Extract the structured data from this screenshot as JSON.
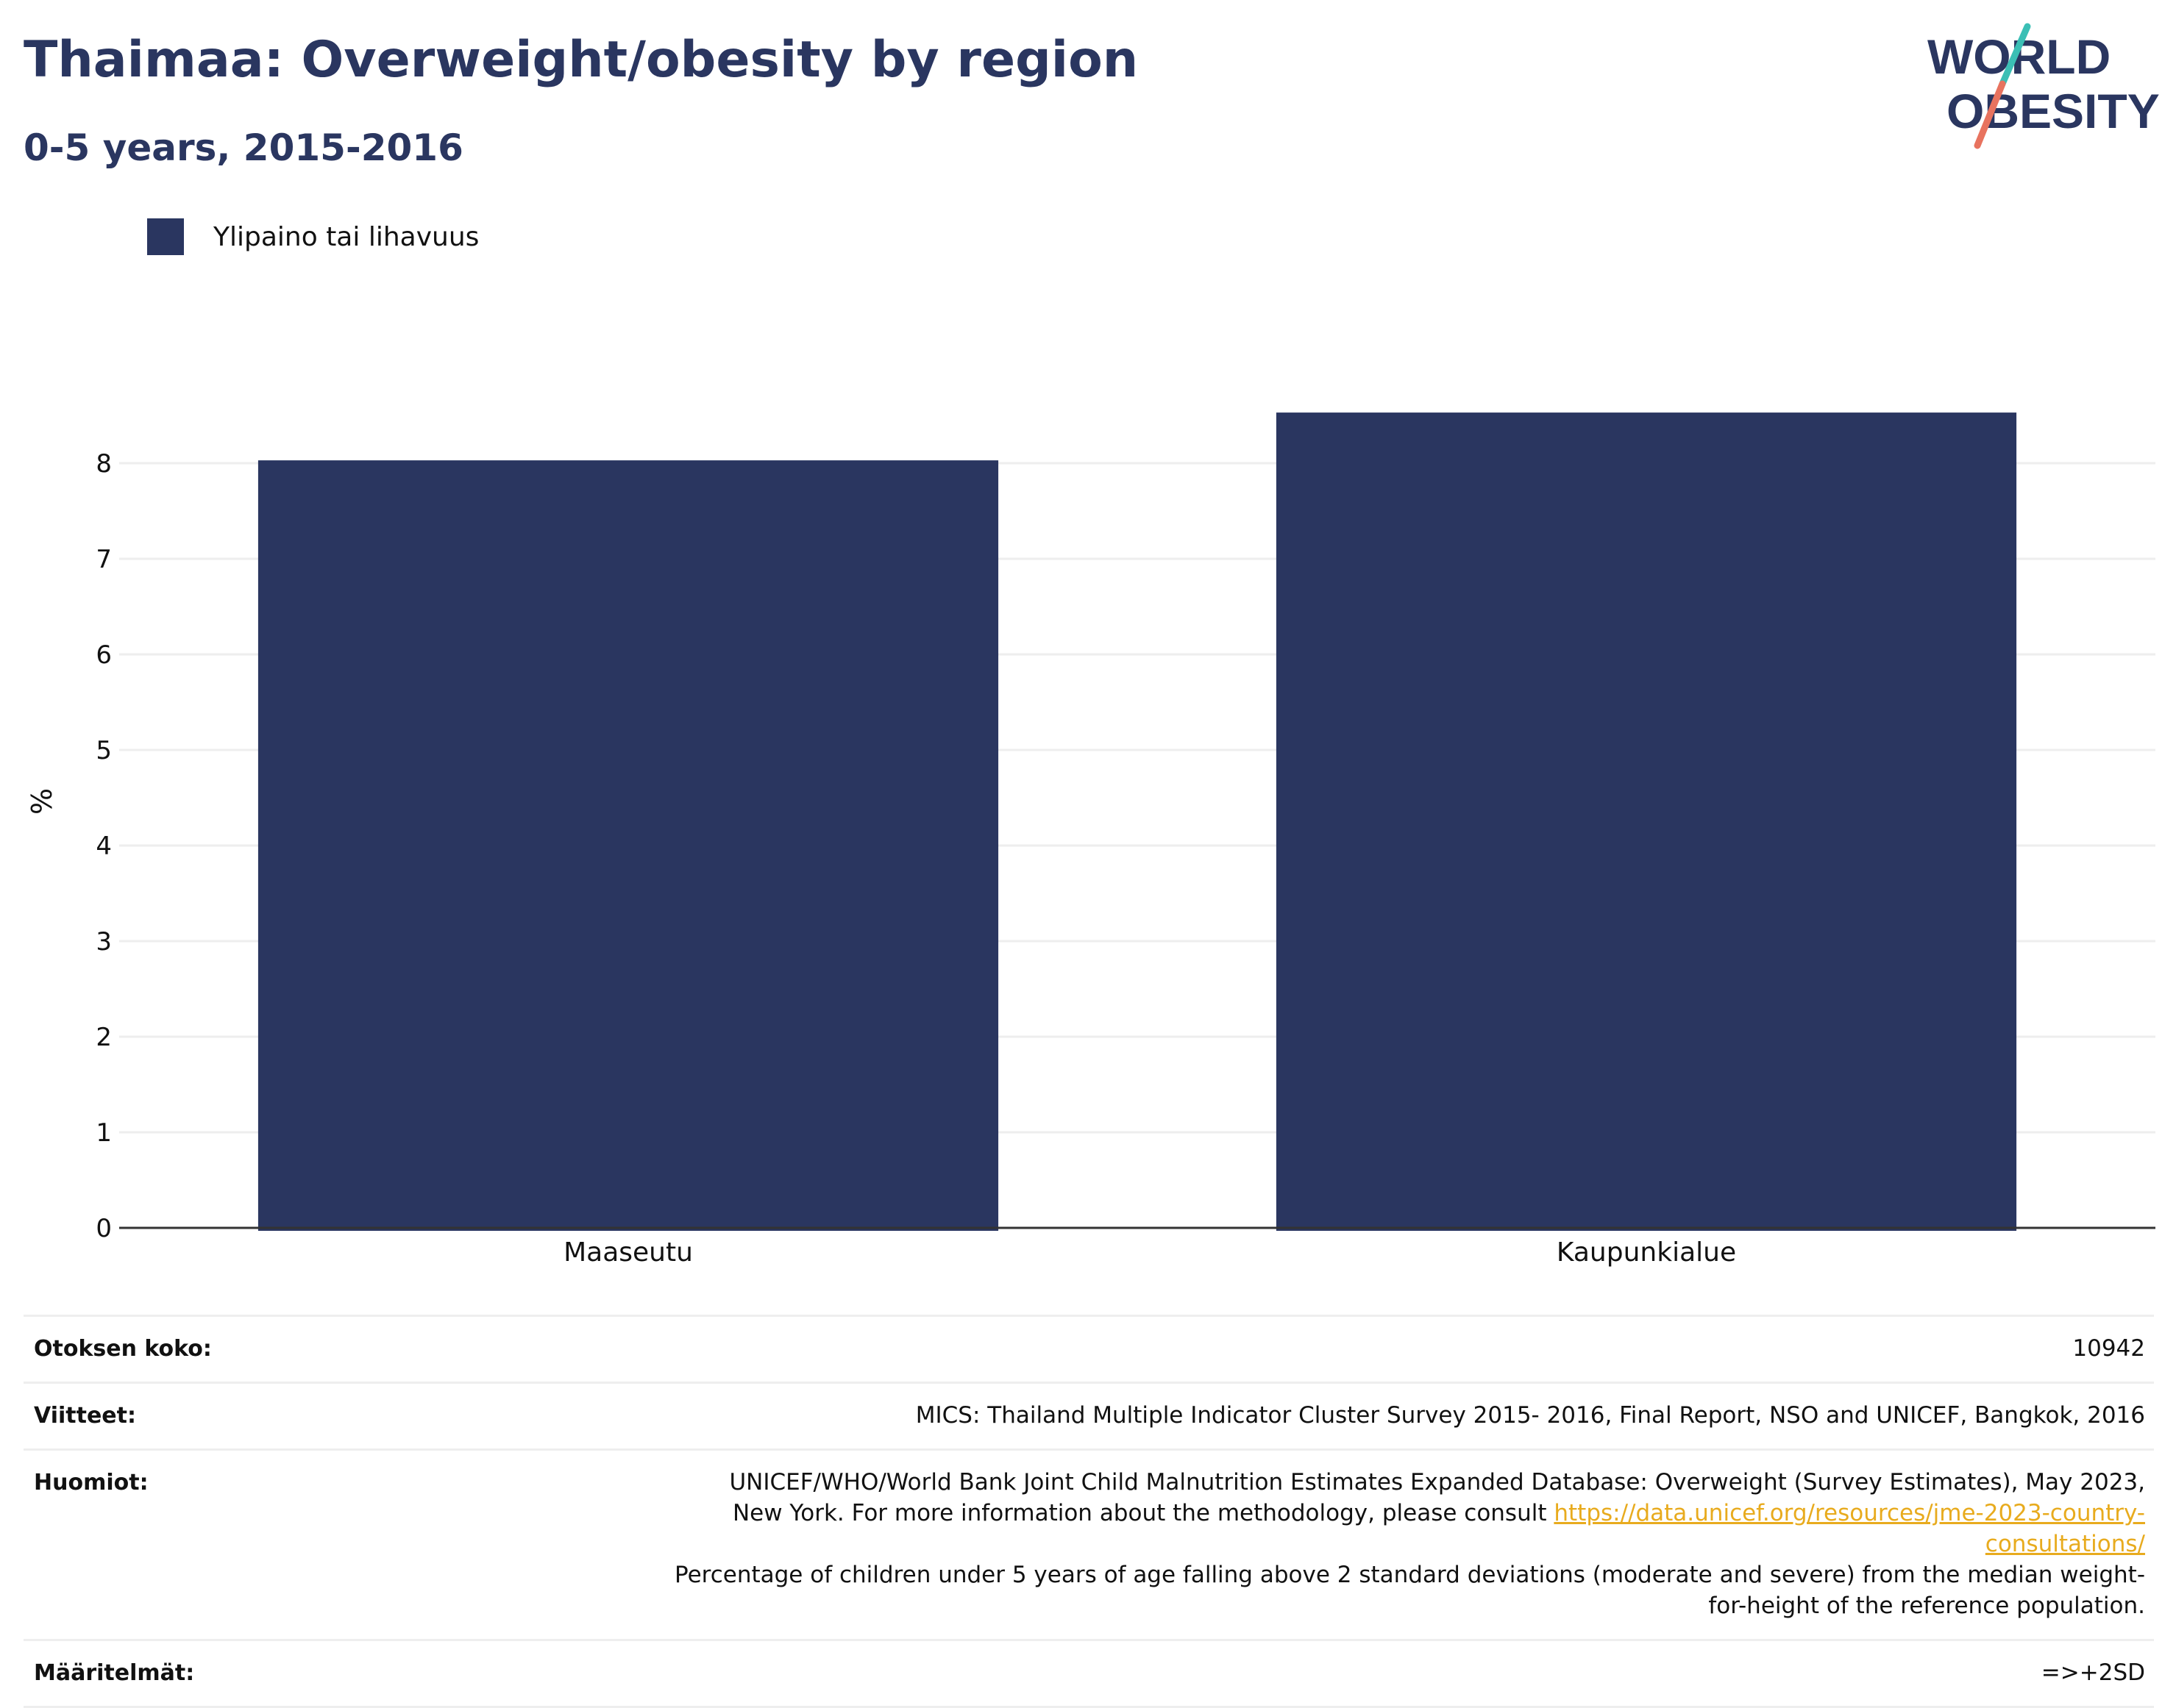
{
  "header": {
    "title": "Thaimaa: Overweight/obesity by region",
    "subtitle": "0-5 years, 2015-2016"
  },
  "logo": {
    "line1": "WORLD",
    "line2": "OBESITY"
  },
  "legend": {
    "label": "Ylipaino tai lihavuus"
  },
  "colors": {
    "bar": "#2a3660",
    "title": "#2a3660",
    "link": "#e8ab1e",
    "grid": "#eeeeee",
    "logo_teal": "#3bbfb5",
    "logo_coral": "#e8735f"
  },
  "chart_data": {
    "type": "bar",
    "categories": [
      "Maaseutu",
      "Kaupunkialue"
    ],
    "series": [
      {
        "name": "Ylipaino tai lihavuus",
        "values": [
          8.03,
          8.53
        ]
      }
    ],
    "ylabel": "%",
    "xlabel": "",
    "ylim": [
      0,
      9
    ],
    "yticks": [
      0,
      1,
      2,
      3,
      4,
      5,
      6,
      7,
      8
    ],
    "grid": true,
    "legend": "top-left"
  },
  "info": {
    "sample_label": "Otoksen koko:",
    "sample_value": "10942",
    "refs_label": "Viitteet:",
    "refs_value": "MICS: Thailand Multiple Indicator Cluster Survey 2015- 2016, Final Report, NSO and UNICEF, Bangkok, 2016",
    "notes_label": "Huomiot:",
    "notes_line1": "UNICEF/WHO/World Bank Joint Child Malnutrition Estimates Expanded Database: Overweight (Survey Estimates), May 2023, New York. For more information about the methodology, please consult",
    "notes_link": "https://data.unicef.org/resources/jme-2023-country-consultations/",
    "notes_line2": "Percentage of children under 5 years of age falling above 2 standard deviations (moderate and severe) from the median weight-for-height of the reference population.",
    "defs_label": "Määritelmät:",
    "defs_value": "=>+2SD"
  }
}
